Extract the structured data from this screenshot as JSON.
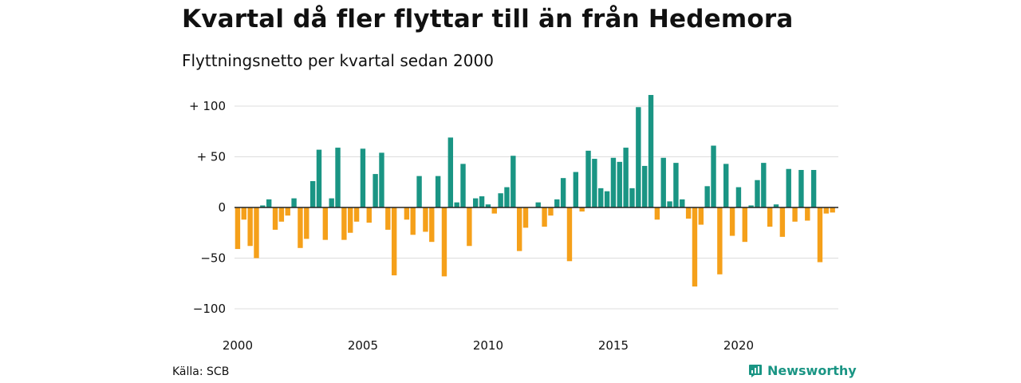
{
  "title": "Kvartal då fler flyttar till än från Hedemora",
  "subtitle": "Flyttningsnetto per kvartal sedan 2000",
  "source": "Källa: SCB",
  "brand": "Newsworthy",
  "colors": {
    "positive": "#1a9584",
    "negative": "#f5a01a",
    "grid": "#dddddd",
    "zero": "#222222"
  },
  "chart_data": {
    "type": "bar",
    "title": "Kvartal då fler flyttar till än från Hedemora",
    "subtitle": "Flyttningsnetto per kvartal sedan 2000",
    "xlabel": "",
    "ylabel": "",
    "x_start": 2000,
    "points_per_year": 4,
    "x_tick_values": [
      2000,
      2005,
      2010,
      2015,
      2020
    ],
    "x_tick_labels": [
      "2000",
      "2005",
      "2010",
      "2015",
      "2020"
    ],
    "y_ticks": [
      100,
      50,
      0,
      -50,
      -100
    ],
    "y_tick_labels": [
      "+ 100",
      "+  50",
      "0",
      "−50",
      "−100"
    ],
    "ylim": [
      -100,
      100
    ],
    "grid": true,
    "values": [
      -41,
      -12,
      -38,
      -50,
      2,
      8,
      -22,
      -14,
      -8,
      9,
      -40,
      -31,
      26,
      57,
      -32,
      9,
      59,
      -32,
      -25,
      -14,
      58,
      -15,
      33,
      54,
      -22,
      -67,
      0,
      -12,
      -27,
      31,
      -24,
      -34,
      31,
      -68,
      69,
      5,
      43,
      -38,
      9,
      11,
      3,
      -6,
      14,
      20,
      51,
      -43,
      -20,
      0,
      5,
      -19,
      -8,
      8,
      29,
      -53,
      35,
      -4,
      56,
      48,
      19,
      16,
      49,
      45,
      59,
      19,
      99,
      41,
      111,
      -12,
      49,
      6,
      44,
      8,
      -11,
      -78,
      -17,
      21,
      61,
      -66,
      43,
      -28,
      20,
      -34,
      2,
      27,
      44,
      -19,
      3,
      -29,
      38,
      -14,
      37,
      -13,
      37,
      -54,
      -6,
      -5
    ]
  }
}
